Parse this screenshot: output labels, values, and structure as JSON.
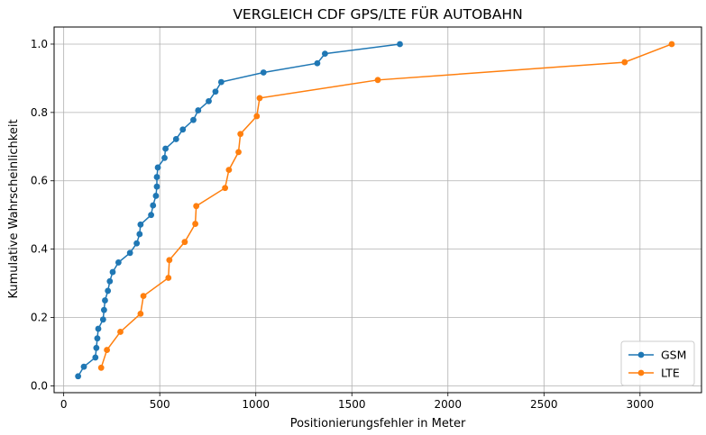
{
  "chart_data": {
    "type": "line",
    "title": "VERGLEICH CDF GPS/LTE FÜR AUTOBAHN",
    "xlabel": "Positionierungsfehler in Meter",
    "ylabel": "Kumulative Wahrscheinlichkeit",
    "xlim": [
      -50,
      3320
    ],
    "ylim": [
      -0.02,
      1.05
    ],
    "x_ticks": [
      0,
      500,
      1000,
      1500,
      2000,
      2500,
      3000
    ],
    "y_ticks": [
      0.0,
      0.2,
      0.4,
      0.6,
      0.8,
      1.0
    ],
    "x_tick_labels": [
      "0",
      "500",
      "1000",
      "1500",
      "2000",
      "2500",
      "3000"
    ],
    "y_tick_labels": [
      "0.0",
      "0.2",
      "0.4",
      "0.6",
      "0.8",
      "1.0"
    ],
    "grid": true,
    "legend_position": "bottom-right",
    "series": [
      {
        "name": "GSM",
        "color": "#1f77b4",
        "x": [
          75,
          105,
          165,
          170,
          175,
          180,
          205,
          210,
          215,
          230,
          240,
          255,
          285,
          345,
          380,
          395,
          400,
          455,
          465,
          480,
          485,
          485,
          490,
          525,
          530,
          585,
          620,
          675,
          700,
          755,
          790,
          820,
          1040,
          1320,
          1360,
          1750
        ],
        "y": [
          0.028,
          0.056,
          0.083,
          0.111,
          0.139,
          0.167,
          0.194,
          0.222,
          0.25,
          0.278,
          0.306,
          0.333,
          0.361,
          0.389,
          0.417,
          0.444,
          0.472,
          0.5,
          0.528,
          0.556,
          0.583,
          0.611,
          0.639,
          0.667,
          0.694,
          0.722,
          0.75,
          0.778,
          0.806,
          0.833,
          0.861,
          0.889,
          0.917,
          0.944,
          0.972,
          1.0
        ]
      },
      {
        "name": "LTE",
        "color": "#ff7f0e",
        "x": [
          195,
          225,
          295,
          400,
          415,
          545,
          550,
          630,
          685,
          690,
          840,
          860,
          910,
          920,
          1005,
          1020,
          1635,
          2920,
          3165
        ],
        "y": [
          0.053,
          0.105,
          0.158,
          0.211,
          0.263,
          0.316,
          0.368,
          0.421,
          0.474,
          0.526,
          0.579,
          0.632,
          0.684,
          0.737,
          0.789,
          0.842,
          0.895,
          0.947,
          1.0
        ]
      }
    ]
  }
}
